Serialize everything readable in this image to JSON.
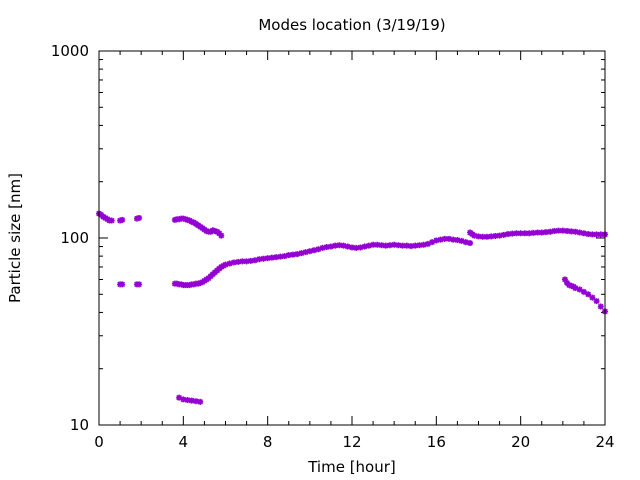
{
  "chart_data": {
    "type": "scatter",
    "title": "Modes location (3/19/19)",
    "xlabel": "Time [hour]",
    "ylabel": "Particle size [nm]",
    "xlim": [
      0,
      24
    ],
    "ylim": [
      10,
      1000
    ],
    "yscale": "log",
    "grid": false,
    "legend": "none",
    "marker_color": "#9400d3",
    "marker": "star",
    "x_ticks": [
      0,
      4,
      8,
      12,
      16,
      20,
      24
    ],
    "x_tick_labels": [
      "0",
      "4",
      "8",
      "12",
      "16",
      "20",
      "24"
    ],
    "y_ticks": [
      10,
      100,
      1000
    ],
    "y_tick_labels": [
      "10",
      "100",
      "1000"
    ],
    "series": [
      {
        "points": [
          [
            0.0,
            135
          ],
          [
            0.1,
            133
          ],
          [
            0.2,
            130
          ],
          [
            0.3,
            128
          ],
          [
            0.4,
            126
          ],
          [
            0.5,
            124
          ],
          [
            0.6,
            124
          ],
          [
            1.0,
            124
          ],
          [
            1.1,
            125
          ],
          [
            1.8,
            127
          ],
          [
            1.9,
            128
          ],
          [
            3.6,
            125
          ],
          [
            3.7,
            126
          ],
          [
            3.8,
            126
          ],
          [
            3.9,
            127
          ],
          [
            4.0,
            127
          ],
          [
            4.1,
            126
          ],
          [
            4.2,
            125
          ],
          [
            4.3,
            124
          ],
          [
            4.4,
            122
          ],
          [
            4.5,
            121
          ],
          [
            4.6,
            119
          ],
          [
            4.7,
            117
          ],
          [
            4.8,
            115
          ],
          [
            4.9,
            113
          ],
          [
            5.0,
            111
          ],
          [
            5.1,
            109
          ],
          [
            5.2,
            108
          ],
          [
            5.3,
            108
          ],
          [
            5.4,
            110
          ],
          [
            5.5,
            109
          ],
          [
            5.6,
            108
          ],
          [
            5.7,
            106
          ],
          [
            5.8,
            103
          ],
          [
            1.0,
            56.5
          ],
          [
            1.1,
            56.5
          ],
          [
            1.8,
            56.5
          ],
          [
            1.9,
            56.5
          ],
          [
            3.6,
            57
          ],
          [
            3.7,
            57
          ],
          [
            3.8,
            56.5
          ],
          [
            3.9,
            56.5
          ],
          [
            4.0,
            56
          ],
          [
            4.1,
            56
          ],
          [
            4.2,
            56
          ],
          [
            4.3,
            56
          ],
          [
            4.4,
            56.5
          ],
          [
            4.5,
            56.5
          ],
          [
            4.6,
            57
          ],
          [
            4.7,
            57
          ],
          [
            4.8,
            57.5
          ],
          [
            4.9,
            58
          ],
          [
            5.0,
            59
          ],
          [
            5.1,
            60
          ],
          [
            5.2,
            61
          ],
          [
            5.3,
            62.5
          ],
          [
            5.4,
            64
          ],
          [
            5.5,
            65.5
          ],
          [
            5.6,
            67
          ],
          [
            5.7,
            68.5
          ],
          [
            5.8,
            70
          ],
          [
            5.9,
            71
          ],
          [
            6.0,
            72
          ],
          [
            6.2,
            73
          ],
          [
            6.4,
            74
          ],
          [
            6.6,
            74.5
          ],
          [
            6.8,
            75
          ],
          [
            7.0,
            75
          ],
          [
            7.2,
            75.5
          ],
          [
            7.4,
            76
          ],
          [
            7.6,
            77
          ],
          [
            7.8,
            77.5
          ],
          [
            8.0,
            78
          ],
          [
            8.2,
            78.5
          ],
          [
            8.4,
            79
          ],
          [
            8.6,
            79.5
          ],
          [
            8.8,
            80
          ],
          [
            9.0,
            81
          ],
          [
            9.2,
            81.5
          ],
          [
            9.4,
            82
          ],
          [
            9.6,
            83
          ],
          [
            9.8,
            84
          ],
          [
            10.0,
            85
          ],
          [
            10.2,
            86
          ],
          [
            10.4,
            87
          ],
          [
            10.6,
            88.5
          ],
          [
            10.8,
            89.5
          ],
          [
            11.0,
            90
          ],
          [
            11.2,
            91
          ],
          [
            11.4,
            91.5
          ],
          [
            11.6,
            91
          ],
          [
            11.8,
            90
          ],
          [
            12.0,
            89
          ],
          [
            12.2,
            88.5
          ],
          [
            12.4,
            89
          ],
          [
            12.6,
            90
          ],
          [
            12.8,
            91
          ],
          [
            13.0,
            92
          ],
          [
            13.2,
            92
          ],
          [
            13.4,
            91.5
          ],
          [
            13.6,
            91
          ],
          [
            13.8,
            91.5
          ],
          [
            14.0,
            92
          ],
          [
            14.2,
            91.5
          ],
          [
            14.4,
            91
          ],
          [
            14.6,
            91
          ],
          [
            14.8,
            90.5
          ],
          [
            15.0,
            91
          ],
          [
            15.2,
            91.5
          ],
          [
            15.4,
            92
          ],
          [
            15.6,
            93
          ],
          [
            15.8,
            95
          ],
          [
            16.0,
            97
          ],
          [
            16.2,
            98
          ],
          [
            16.4,
            99
          ],
          [
            16.6,
            99
          ],
          [
            16.8,
            98
          ],
          [
            17.0,
            97.5
          ],
          [
            17.2,
            96.5
          ],
          [
            17.4,
            95
          ],
          [
            17.6,
            94
          ],
          [
            17.6,
            107
          ],
          [
            17.7,
            105
          ],
          [
            17.8,
            103
          ],
          [
            18.0,
            102
          ],
          [
            18.2,
            101.5
          ],
          [
            18.4,
            101.5
          ],
          [
            18.6,
            102
          ],
          [
            18.8,
            102.5
          ],
          [
            19.0,
            103
          ],
          [
            19.2,
            104
          ],
          [
            19.4,
            105
          ],
          [
            19.6,
            105.5
          ],
          [
            19.8,
            106
          ],
          [
            20.0,
            106
          ],
          [
            20.2,
            106
          ],
          [
            20.4,
            106
          ],
          [
            20.6,
            106.5
          ],
          [
            20.8,
            107
          ],
          [
            21.0,
            107
          ],
          [
            21.2,
            107.5
          ],
          [
            21.4,
            108
          ],
          [
            21.6,
            109
          ],
          [
            21.8,
            109.5
          ],
          [
            22.0,
            109.5
          ],
          [
            22.2,
            109
          ],
          [
            22.4,
            108.5
          ],
          [
            22.6,
            108
          ],
          [
            22.8,
            107
          ],
          [
            23.0,
            106
          ],
          [
            23.2,
            105
          ],
          [
            23.4,
            104.5
          ],
          [
            23.6,
            104.5
          ],
          [
            23.8,
            104.5
          ],
          [
            24.0,
            104.5
          ],
          [
            22.1,
            60
          ],
          [
            22.2,
            57.5
          ],
          [
            22.3,
            56
          ],
          [
            22.4,
            55.5
          ],
          [
            22.5,
            55
          ],
          [
            22.6,
            54
          ],
          [
            22.8,
            53
          ],
          [
            23.0,
            51.5
          ],
          [
            23.2,
            50
          ],
          [
            23.4,
            48
          ],
          [
            23.6,
            46
          ],
          [
            23.8,
            43
          ],
          [
            24.0,
            40.5
          ],
          [
            3.8,
            14
          ],
          [
            4.0,
            13.7
          ],
          [
            4.2,
            13.6
          ],
          [
            4.4,
            13.5
          ],
          [
            4.6,
            13.4
          ],
          [
            4.8,
            13.3
          ]
        ]
      }
    ]
  }
}
